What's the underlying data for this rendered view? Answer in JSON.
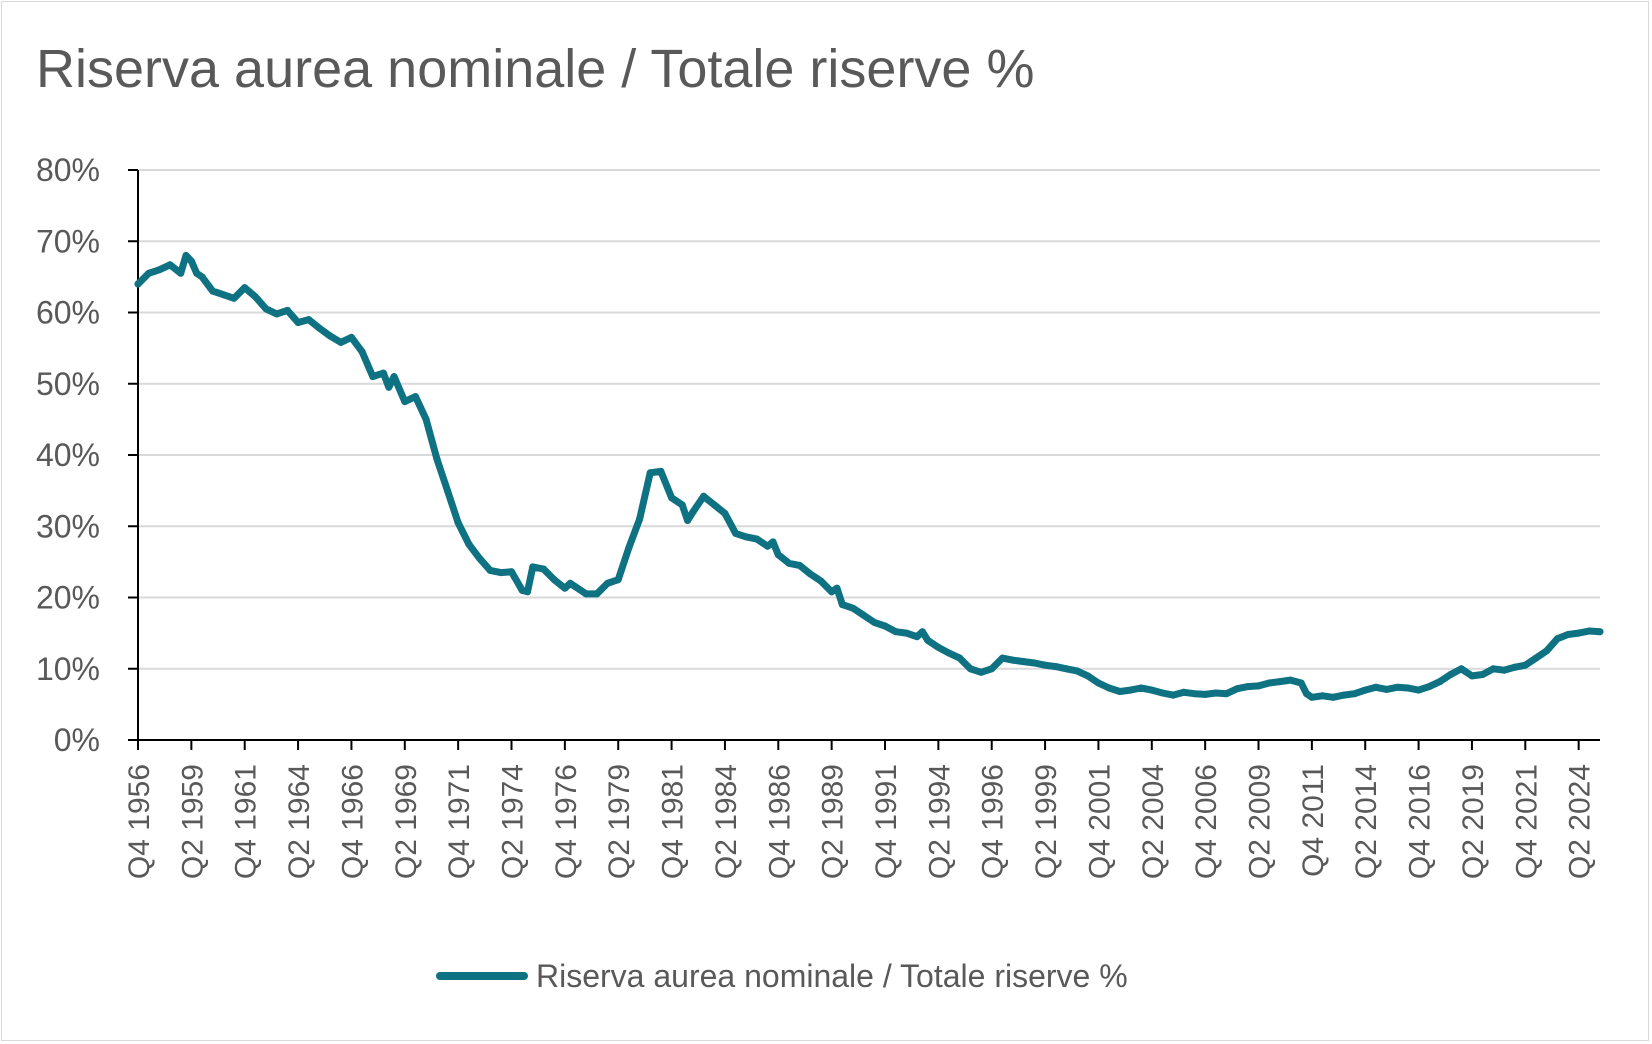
{
  "chart_data": {
    "type": "line",
    "title": "Riserva aurea nominale / Totale riserve %",
    "xlabel": "",
    "ylabel": "",
    "ylim": [
      0,
      80
    ],
    "y_ticks": [
      "0%",
      "10%",
      "20%",
      "30%",
      "40%",
      "50%",
      "60%",
      "70%",
      "80%"
    ],
    "grid": "horizontal",
    "legend_position": "bottom",
    "line_color": "#0e7282",
    "x_tick_labels": [
      "Q4 1956",
      "Q2 1959",
      "Q4 1961",
      "Q2 1964",
      "Q4 1966",
      "Q2 1969",
      "Q4 1971",
      "Q2 1974",
      "Q4 1976",
      "Q2 1979",
      "Q4 1981",
      "Q2 1984",
      "Q4 1986",
      "Q2 1989",
      "Q4 1991",
      "Q2 1994",
      "Q4 1996",
      "Q2 1999",
      "Q4 2001",
      "Q2 2004",
      "Q4 2006",
      "Q2 2009",
      "Q4 2011",
      "Q2 2014",
      "Q4 2016",
      "Q2 2019",
      "Q4 2021",
      "Q2 2024"
    ],
    "series": [
      {
        "name": "Riserva aurea nominale / Totale riserve %",
        "points": [
          [
            "Q4 1956",
            64.0
          ],
          [
            "Q2 1957",
            65.5
          ],
          [
            "Q4 1957",
            66.0
          ],
          [
            "Q2 1958",
            66.7
          ],
          [
            "Q4 1958",
            65.5
          ],
          [
            "Q1 1959",
            68.0
          ],
          [
            "Q2 1959",
            67.2
          ],
          [
            "Q3 1959",
            65.5
          ],
          [
            "Q4 1959",
            65.0
          ],
          [
            "Q2 1960",
            63.0
          ],
          [
            "Q4 1960",
            62.5
          ],
          [
            "Q2 1961",
            62.0
          ],
          [
            "Q4 1961",
            63.5
          ],
          [
            "Q2 1962",
            62.2
          ],
          [
            "Q4 1962",
            60.5
          ],
          [
            "Q2 1963",
            59.8
          ],
          [
            "Q4 1963",
            60.3
          ],
          [
            "Q2 1964",
            58.6
          ],
          [
            "Q4 1964",
            59.0
          ],
          [
            "Q2 1965",
            57.8
          ],
          [
            "Q4 1965",
            56.7
          ],
          [
            "Q2 1966",
            55.8
          ],
          [
            "Q4 1966",
            56.5
          ],
          [
            "Q2 1967",
            54.5
          ],
          [
            "Q4 1967",
            51.0
          ],
          [
            "Q2 1968",
            51.5
          ],
          [
            "Q3 1968",
            49.5
          ],
          [
            "Q4 1968",
            51.0
          ],
          [
            "Q2 1969",
            47.5
          ],
          [
            "Q4 1969",
            48.2
          ],
          [
            "Q2 1970",
            45.0
          ],
          [
            "Q4 1970",
            39.5
          ],
          [
            "Q2 1971",
            35.0
          ],
          [
            "Q4 1971",
            30.5
          ],
          [
            "Q2 1972",
            27.5
          ],
          [
            "Q4 1972",
            25.5
          ],
          [
            "Q2 1973",
            23.8
          ],
          [
            "Q4 1973",
            23.5
          ],
          [
            "Q2 1974",
            23.6
          ],
          [
            "Q4 1974",
            21.0
          ],
          [
            "Q1 1975",
            20.8
          ],
          [
            "Q2 1975",
            24.3
          ],
          [
            "Q4 1975",
            24.0
          ],
          [
            "Q2 1976",
            22.5
          ],
          [
            "Q4 1976",
            21.3
          ],
          [
            "Q1 1977",
            22.0
          ],
          [
            "Q2 1977",
            21.5
          ],
          [
            "Q4 1977",
            20.5
          ],
          [
            "Q2 1978",
            20.5
          ],
          [
            "Q4 1978",
            22.0
          ],
          [
            "Q2 1979",
            22.5
          ],
          [
            "Q4 1979",
            27.0
          ],
          [
            "Q2 1980",
            31.0
          ],
          [
            "Q4 1980",
            37.5
          ],
          [
            "Q2 1981",
            37.7
          ],
          [
            "Q4 1981",
            34.0
          ],
          [
            "Q2 1982",
            33.0
          ],
          [
            "Q3 1982",
            30.8
          ],
          [
            "Q4 1982",
            32.0
          ],
          [
            "Q2 1983",
            34.2
          ],
          [
            "Q4 1983",
            33.0
          ],
          [
            "Q2 1984",
            31.8
          ],
          [
            "Q4 1984",
            29.0
          ],
          [
            "Q2 1985",
            28.5
          ],
          [
            "Q4 1985",
            28.2
          ],
          [
            "Q2 1986",
            27.2
          ],
          [
            "Q3 1986",
            27.8
          ],
          [
            "Q4 1986",
            26.0
          ],
          [
            "Q2 1987",
            24.8
          ],
          [
            "Q4 1987",
            24.5
          ],
          [
            "Q2 1988",
            23.3
          ],
          [
            "Q4 1988",
            22.3
          ],
          [
            "Q2 1989",
            20.8
          ],
          [
            "Q3 1989",
            21.3
          ],
          [
            "Q4 1989",
            19.0
          ],
          [
            "Q2 1990",
            18.5
          ],
          [
            "Q4 1990",
            17.5
          ],
          [
            "Q2 1991",
            16.5
          ],
          [
            "Q4 1991",
            16.0
          ],
          [
            "Q2 1992",
            15.2
          ],
          [
            "Q4 1992",
            15.0
          ],
          [
            "Q2 1993",
            14.5
          ],
          [
            "Q3 1993",
            15.2
          ],
          [
            "Q4 1993",
            14.0
          ],
          [
            "Q2 1994",
            13.0
          ],
          [
            "Q4 1994",
            12.2
          ],
          [
            "Q2 1995",
            11.5
          ],
          [
            "Q4 1995",
            10.0
          ],
          [
            "Q2 1996",
            9.5
          ],
          [
            "Q4 1996",
            10.0
          ],
          [
            "Q2 1997",
            11.5
          ],
          [
            "Q4 1997",
            11.2
          ],
          [
            "Q2 1998",
            11.0
          ],
          [
            "Q4 1998",
            10.8
          ],
          [
            "Q2 1999",
            10.5
          ],
          [
            "Q4 1999",
            10.3
          ],
          [
            "Q2 2000",
            10.0
          ],
          [
            "Q4 2000",
            9.7
          ],
          [
            "Q2 2001",
            9.0
          ],
          [
            "Q4 2001",
            8.0
          ],
          [
            "Q2 2002",
            7.3
          ],
          [
            "Q4 2002",
            6.8
          ],
          [
            "Q2 2003",
            7.0
          ],
          [
            "Q4 2003",
            7.3
          ],
          [
            "Q2 2004",
            7.0
          ],
          [
            "Q4 2004",
            6.6
          ],
          [
            "Q2 2005",
            6.3
          ],
          [
            "Q4 2005",
            6.7
          ],
          [
            "Q2 2006",
            6.5
          ],
          [
            "Q4 2006",
            6.4
          ],
          [
            "Q2 2007",
            6.6
          ],
          [
            "Q4 2007",
            6.5
          ],
          [
            "Q2 2008",
            7.2
          ],
          [
            "Q4 2008",
            7.5
          ],
          [
            "Q2 2009",
            7.6
          ],
          [
            "Q4 2009",
            8.0
          ],
          [
            "Q2 2010",
            8.2
          ],
          [
            "Q4 2010",
            8.4
          ],
          [
            "Q2 2011",
            8.0
          ],
          [
            "Q3 2011",
            6.5
          ],
          [
            "Q4 2011",
            6.0
          ],
          [
            "Q2 2012",
            6.2
          ],
          [
            "Q4 2012",
            6.0
          ],
          [
            "Q2 2013",
            6.3
          ],
          [
            "Q4 2013",
            6.5
          ],
          [
            "Q2 2014",
            7.0
          ],
          [
            "Q4 2014",
            7.4
          ],
          [
            "Q2 2015",
            7.1
          ],
          [
            "Q4 2015",
            7.4
          ],
          [
            "Q2 2016",
            7.3
          ],
          [
            "Q4 2016",
            7.0
          ],
          [
            "Q2 2017",
            7.5
          ],
          [
            "Q4 2017",
            8.2
          ],
          [
            "Q2 2018",
            9.2
          ],
          [
            "Q4 2018",
            10.0
          ],
          [
            "Q2 2019",
            9.0
          ],
          [
            "Q4 2019",
            9.2
          ],
          [
            "Q2 2020",
            10.0
          ],
          [
            "Q4 2020",
            9.8
          ],
          [
            "Q2 2021",
            10.2
          ],
          [
            "Q4 2021",
            10.5
          ],
          [
            "Q2 2022",
            11.5
          ],
          [
            "Q4 2022",
            12.5
          ],
          [
            "Q2 2023",
            14.2
          ],
          [
            "Q4 2023",
            14.8
          ],
          [
            "Q2 2024",
            15.0
          ],
          [
            "Q4 2024",
            15.3
          ],
          [
            "Q2 2025",
            15.2
          ]
        ]
      }
    ]
  }
}
